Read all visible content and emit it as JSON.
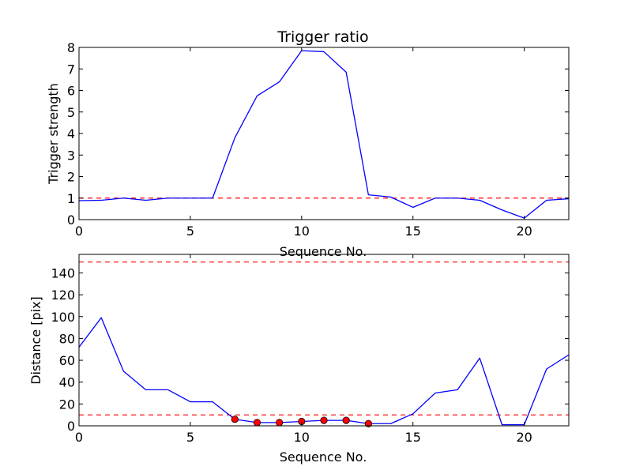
{
  "chart_data": [
    {
      "type": "line",
      "title": "Trigger ratio",
      "xlabel": "Sequence No.",
      "ylabel": "Trigger strength",
      "xlim": [
        0,
        22
      ],
      "ylim": [
        0,
        8
      ],
      "xticks": [
        0,
        5,
        10,
        15,
        20
      ],
      "yticks": [
        0,
        1,
        2,
        3,
        4,
        5,
        6,
        7,
        8
      ],
      "grid": false,
      "series": [
        {
          "color": "#0000ff",
          "x": [
            0,
            1,
            2,
            3,
            4,
            5,
            6,
            7,
            8,
            9,
            10,
            11,
            12,
            13,
            14,
            15,
            16,
            17,
            18,
            19,
            20,
            21,
            22
          ],
          "y": [
            0.88,
            0.9,
            1.0,
            0.9,
            1.0,
            1.0,
            1.0,
            3.8,
            5.75,
            6.4,
            7.85,
            7.8,
            6.85,
            1.15,
            1.05,
            0.57,
            1.0,
            1.0,
            0.9,
            0.45,
            0.07,
            0.9,
            0.97
          ]
        }
      ],
      "hlines": [
        {
          "y": 1.0,
          "color": "#ff0000",
          "style": "dashed"
        }
      ],
      "markers": []
    },
    {
      "type": "line",
      "title": "",
      "xlabel": "Sequence No.",
      "ylabel": "Distance [pix]",
      "xlim": [
        0,
        22
      ],
      "ylim": [
        0,
        157
      ],
      "xticks": [
        0,
        5,
        10,
        15,
        20
      ],
      "yticks": [
        0,
        20,
        40,
        60,
        80,
        100,
        120,
        140
      ],
      "grid": false,
      "series": [
        {
          "color": "#0000ff",
          "x": [
            0,
            1,
            2,
            3,
            4,
            5,
            6,
            7,
            8,
            9,
            10,
            11,
            12,
            13,
            14,
            15,
            16,
            17,
            18,
            19,
            20,
            21,
            22
          ],
          "y": [
            72,
            99,
            50,
            33,
            33,
            22,
            22,
            6,
            3,
            3,
            4,
            5,
            5,
            2,
            2,
            11,
            30,
            33,
            62,
            1,
            1,
            52,
            65
          ]
        }
      ],
      "hlines": [
        {
          "y": 150,
          "color": "#ff0000",
          "style": "dashed"
        },
        {
          "y": 10,
          "color": "#ff0000",
          "style": "dashed"
        }
      ],
      "markers": [
        {
          "color": "#ff0000",
          "x": [
            7,
            8,
            9,
            10,
            11,
            12,
            13
          ],
          "y": [
            6,
            3,
            3,
            4,
            5,
            5,
            2
          ]
        }
      ]
    }
  ]
}
